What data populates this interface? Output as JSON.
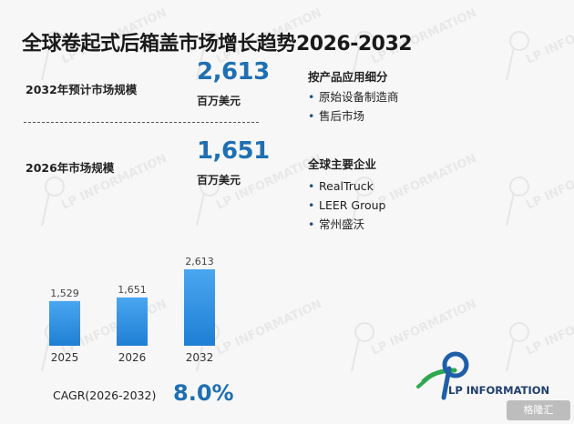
{
  "title": "全球卷起式后箱盖市场增长趋势2026-2032",
  "stats": [
    {
      "label": "2032年预计市场规模",
      "value": "2,613",
      "unit": "百万美元"
    },
    {
      "label": "2026年市场规模",
      "value": "1,651",
      "unit": "百万美元"
    }
  ],
  "segments": {
    "title": "按产品应用细分",
    "items": [
      "原始设备制造商",
      "售后市场"
    ]
  },
  "companies": {
    "title": "全球主要企业",
    "items": [
      "RealTruck",
      "LEER Group",
      "常州盛沃"
    ]
  },
  "chart_data": {
    "type": "bar",
    "categories": [
      "2025",
      "2026",
      "2032"
    ],
    "values": [
      1529,
      1651,
      2613
    ],
    "value_labels": [
      "1,529",
      "1,651",
      "2,613"
    ],
    "ylim": [
      0,
      2613
    ],
    "grid": false,
    "bar_color": "#2e8fe0"
  },
  "cagr": {
    "label": "CAGR(2026-2032)",
    "value": "8.0%"
  },
  "logo": {
    "text": "LP INFORMATION"
  },
  "watermark_text": "LP INFORMATION",
  "badge": {
    "text": "格隆汇"
  }
}
